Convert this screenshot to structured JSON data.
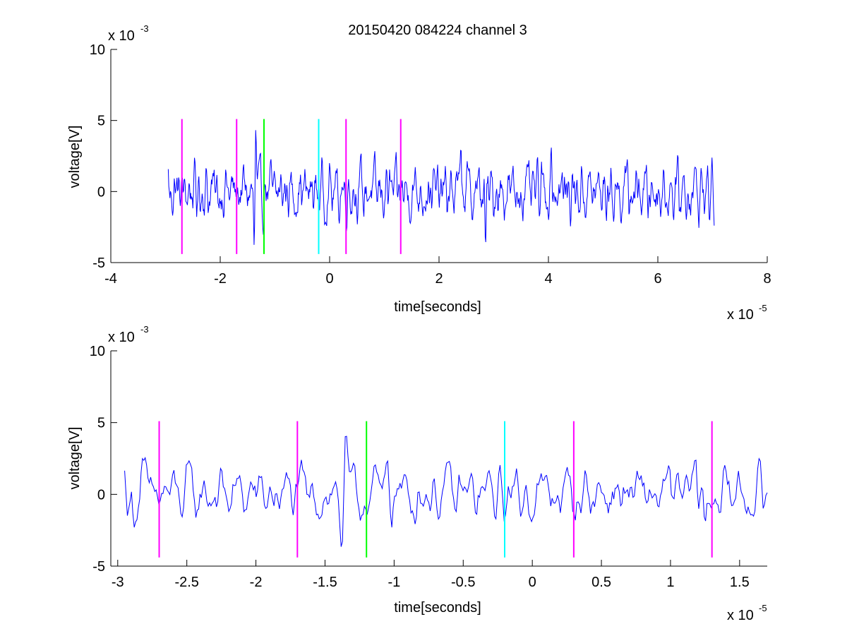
{
  "figure": {
    "title": "20150420 084224 channel 3"
  },
  "chart_data": [
    {
      "type": "line",
      "xlabel": "time[seconds]",
      "ylabel": "voltage[V]",
      "x_exponent_label": "x 10",
      "x_exponent_sup": "-5",
      "y_exponent_label": "x 10",
      "y_exponent_sup": "-3",
      "xlim": [
        -4,
        8
      ],
      "ylim": [
        -5,
        10
      ],
      "xticks": [
        -4,
        -2,
        0,
        2,
        4,
        6,
        8
      ],
      "yticks": [
        -5,
        0,
        5,
        10
      ],
      "grid": false,
      "series": [
        {
          "color": "#0000ff",
          "x_range": [
            -2.95,
            7.03
          ],
          "points": 1000,
          "approx_envelope": [
            -3.9,
            4.6
          ],
          "notable_peaks": [
            [
              -1.35,
              4.6
            ],
            [
              -1.38,
              -3.8
            ],
            [
              2.85,
              -3.9
            ],
            [
              4.05,
              3.2
            ],
            [
              2.4,
              3.3
            ]
          ]
        }
      ],
      "markers": [
        {
          "x": -2.7,
          "y_from": -4.4,
          "y_to": 5.1,
          "color": "#ff00ff"
        },
        {
          "x": -1.7,
          "y_from": -4.4,
          "y_to": 5.1,
          "color": "#ff00ff"
        },
        {
          "x": -1.2,
          "y_from": -4.4,
          "y_to": 5.1,
          "color": "#00ff00"
        },
        {
          "x": -0.2,
          "y_from": -4.4,
          "y_to": 5.1,
          "color": "#00ffff"
        },
        {
          "x": 0.3,
          "y_from": -4.4,
          "y_to": 5.1,
          "color": "#ff00ff"
        },
        {
          "x": 1.3,
          "y_from": -4.4,
          "y_to": 5.1,
          "color": "#ff00ff"
        }
      ]
    },
    {
      "type": "line",
      "xlabel": "time[seconds]",
      "ylabel": "voltage[V]",
      "x_exponent_label": "x 10",
      "x_exponent_sup": "-5",
      "y_exponent_label": "x 10",
      "y_exponent_sup": "-3",
      "xlim": [
        -3.05,
        1.7
      ],
      "ylim": [
        -5,
        10
      ],
      "xticks": [
        -3,
        -2.5,
        -2,
        -1.5,
        -1,
        -0.5,
        0,
        0.5,
        1,
        1.5
      ],
      "yticks": [
        -5,
        0,
        5,
        10
      ],
      "grid": false,
      "series": [
        {
          "color": "#0000ff",
          "x_range": [
            -2.95,
            1.7
          ],
          "points": 470,
          "approx_envelope": [
            -3.9,
            4.6
          ],
          "notable_peaks": [
            [
              -2.82,
              2.5
            ],
            [
              -2.88,
              -2.3
            ],
            [
              -1.35,
              4.6
            ],
            [
              -1.38,
              -3.8
            ],
            [
              -1.05,
              2.5
            ],
            [
              1.18,
              2.7
            ],
            [
              1.25,
              -2.0
            ]
          ]
        }
      ],
      "markers": [
        {
          "x": -2.7,
          "y_from": -4.4,
          "y_to": 5.1,
          "color": "#ff00ff"
        },
        {
          "x": -1.7,
          "y_from": -4.4,
          "y_to": 5.1,
          "color": "#ff00ff"
        },
        {
          "x": -1.2,
          "y_from": -4.4,
          "y_to": 5.1,
          "color": "#00ff00"
        },
        {
          "x": -0.2,
          "y_from": -4.4,
          "y_to": 5.1,
          "color": "#00ffff"
        },
        {
          "x": 0.3,
          "y_from": -4.4,
          "y_to": 5.1,
          "color": "#ff00ff"
        },
        {
          "x": 1.3,
          "y_from": -4.4,
          "y_to": 5.1,
          "color": "#ff00ff"
        }
      ]
    }
  ]
}
